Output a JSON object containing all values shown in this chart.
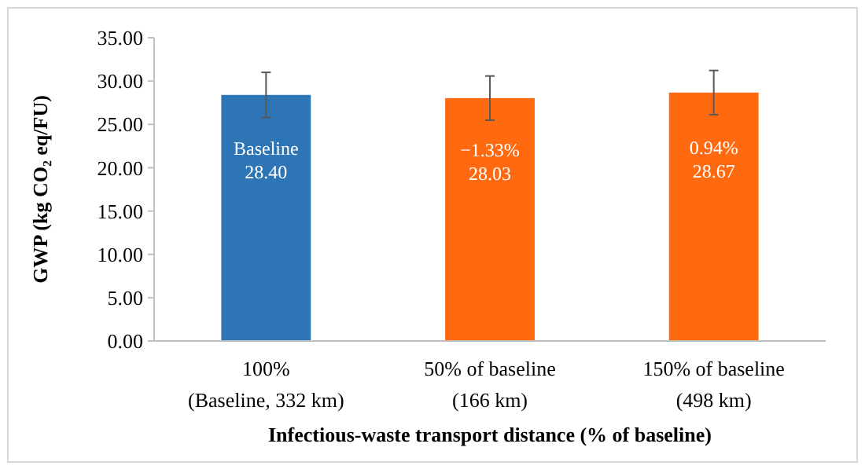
{
  "chart_data": {
    "type": "bar",
    "categories": [
      "100%\n(Baseline, 332 km)",
      "50% of baseline\n(166 km)",
      "150% of baseline\n(498 km)"
    ],
    "values": [
      28.4,
      28.03,
      28.67
    ],
    "colors": [
      "#2e75b6",
      "#ff6a10",
      "#ff6a10"
    ],
    "errors": [
      2.6,
      2.55,
      2.55
    ],
    "value_labels": [
      "Baseline\n28.40",
      "−1.33%\n28.03",
      "0.94%\n28.67"
    ],
    "xlabel": "Infectious-waste transport distance (% of baseline)",
    "ylabel": "GWP (kg CO₂ eq/FU)",
    "ylim": [
      0,
      35
    ],
    "yticks": [
      {
        "value": 0,
        "label": "0.00"
      },
      {
        "value": 5,
        "label": "5.00"
      },
      {
        "value": 10,
        "label": "10.00"
      },
      {
        "value": 15,
        "label": "15.00"
      },
      {
        "value": 20,
        "label": "20.00"
      },
      {
        "value": 25,
        "label": "25.00"
      },
      {
        "value": 30,
        "label": "30.00"
      },
      {
        "value": 35,
        "label": "35.00"
      }
    ],
    "grid": false
  }
}
